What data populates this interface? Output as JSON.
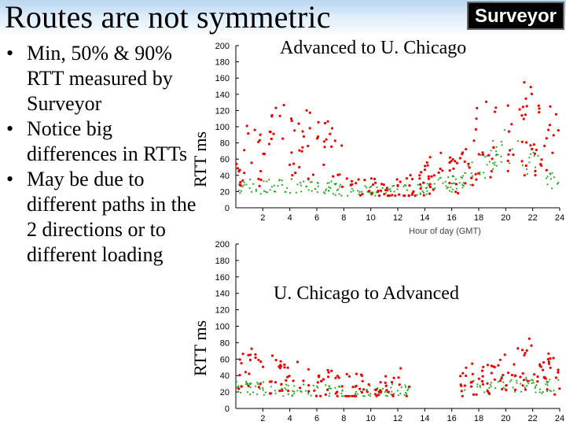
{
  "slide": {
    "title": "Routes are not symmetric",
    "logo_text": "Surveyor",
    "bullets": [
      "Min, 50% & 90% RTT measured by Surveyor",
      "Notice big differences in RTTs",
      "May be due to different paths in the 2 directions or to different loading"
    ]
  },
  "colors": {
    "header_gradient": "#b9d6f0",
    "min_series": "#0000cc",
    "median_series": "#22aa22",
    "p90_series": "#ee0000"
  },
  "chart_data": [
    {
      "type": "scatter",
      "title": "Advanced to U. Chicago",
      "ylabel": "RTT ms",
      "xlabel": "Hour of day (GMT)",
      "xlim": [
        0,
        24
      ],
      "ylim": [
        0,
        200
      ],
      "xticks": [
        2,
        4,
        6,
        8,
        10,
        12,
        14,
        16,
        18,
        20,
        22,
        24
      ],
      "yticks": [
        0,
        20,
        40,
        60,
        80,
        100,
        120,
        140,
        160,
        180,
        200
      ],
      "grid": false,
      "series": [
        {
          "color": "#0000cc",
          "x": [
            0,
            24
          ],
          "y": [
            19,
            20
          ]
        },
        {
          "color": "#22aa22",
          "x": [
            0,
            1,
            2,
            3,
            4,
            5,
            6,
            7,
            8,
            9,
            10,
            11,
            12,
            13,
            14,
            15,
            16,
            17,
            18,
            19,
            20,
            21,
            22,
            23,
            24
          ],
          "y": [
            24,
            26,
            25,
            27,
            28,
            27,
            26,
            25,
            22,
            21,
            20,
            20,
            21,
            22,
            23,
            27,
            30,
            35,
            50,
            60,
            80,
            65,
            55,
            40,
            30
          ]
        },
        {
          "color": "#ee0000",
          "x": [
            0,
            1,
            2,
            3,
            4,
            5,
            6,
            7,
            8,
            9,
            10,
            11,
            12,
            13,
            14,
            15,
            16,
            17,
            18,
            19,
            20,
            21,
            22,
            23,
            24
          ],
          "y": [
            55,
            70,
            60,
            95,
            90,
            85,
            80,
            70,
            45,
            30,
            25,
            22,
            22,
            26,
            35,
            50,
            40,
            45,
            90,
            80,
            110,
            95,
            100,
            85,
            70
          ]
        }
      ]
    },
    {
      "type": "scatter",
      "title": "U. Chicago to Advanced",
      "ylabel": "RTT ms",
      "xlabel": "",
      "xlim": [
        0,
        24
      ],
      "ylim": [
        0,
        200
      ],
      "xticks": [
        2,
        4,
        6,
        8,
        10,
        12,
        14,
        16,
        18,
        20,
        22,
        24
      ],
      "yticks": [
        0,
        20,
        40,
        60,
        80,
        100,
        120,
        140,
        160,
        180,
        200
      ],
      "grid": false,
      "series": [
        {
          "color": "#0000cc",
          "x": [
            0,
            13.5,
            16.5,
            24
          ],
          "y": [
            19,
            19,
            19,
            19
          ]
        },
        {
          "color": "#22aa22",
          "x": [
            0,
            1,
            2,
            3,
            4,
            5,
            6,
            7,
            8,
            9,
            10,
            11,
            12,
            13,
            16.5,
            17,
            18,
            19,
            20,
            21,
            22,
            23,
            24
          ],
          "y": [
            25,
            25,
            24,
            23,
            22,
            22,
            22,
            21,
            21,
            21,
            21,
            22,
            22,
            24,
            23,
            24,
            26,
            28,
            30,
            30,
            28,
            27,
            26
          ]
        },
        {
          "color": "#ee0000",
          "x": [
            0,
            1,
            2,
            3,
            4,
            5,
            6,
            7,
            8,
            9,
            10,
            11,
            12,
            13,
            16.5,
            17,
            18,
            19,
            20,
            21,
            22,
            23,
            24
          ],
          "y": [
            42,
            45,
            50,
            42,
            38,
            36,
            32,
            30,
            28,
            28,
            27,
            28,
            30,
            34,
            32,
            38,
            40,
            40,
            45,
            48,
            55,
            45,
            40
          ]
        }
      ]
    }
  ]
}
